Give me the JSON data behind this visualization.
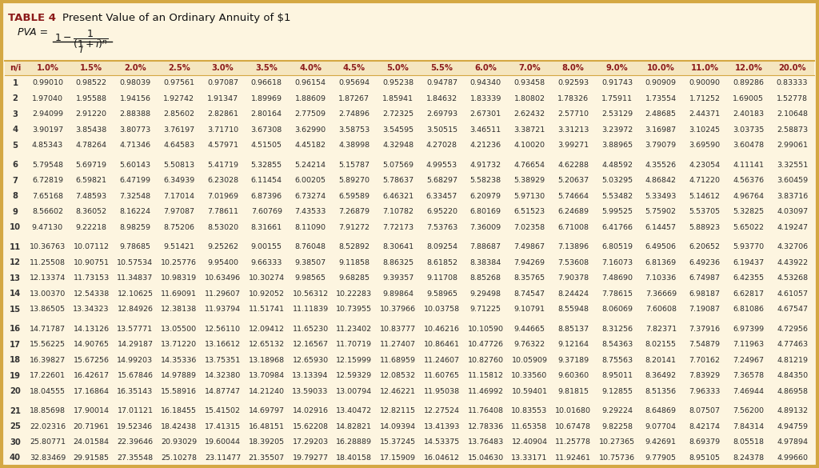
{
  "title_bold": "TABLE 4",
  "title_rest": "  Present Value of an Ordinary Annuity of $1",
  "bg_color": "#fdf5e0",
  "border_color": "#d4a843",
  "header_text_color": "#8b1a1a",
  "data_text_color": "#2a2a2a",
  "row_n_color": "#333333",
  "header_row_bg": "#f5e6c0",
  "data_row_bg": "#fdf5e0",
  "columns": [
    "n/i",
    "1.0%",
    "1.5%",
    "2.0%",
    "2.5%",
    "3.0%",
    "3.5%",
    "4.0%",
    "4.5%",
    "5.0%",
    "5.5%",
    "6.0%",
    "7.0%",
    "8.0%",
    "9.0%",
    "10.0%",
    "11.0%",
    "12.0%",
    "20.0%"
  ],
  "rows": [
    [
      1,
      0.9901,
      0.98522,
      0.98039,
      0.97561,
      0.97087,
      0.96618,
      0.96154,
      0.95694,
      0.95238,
      0.94787,
      0.9434,
      0.93458,
      0.92593,
      0.91743,
      0.90909,
      0.9009,
      0.89286,
      0.83333
    ],
    [
      2,
      1.9704,
      1.95588,
      1.94156,
      1.92742,
      1.91347,
      1.89969,
      1.88609,
      1.87267,
      1.85941,
      1.84632,
      1.83339,
      1.80802,
      1.78326,
      1.75911,
      1.73554,
      1.71252,
      1.69005,
      1.52778
    ],
    [
      3,
      2.94099,
      2.9122,
      2.88388,
      2.85602,
      2.82861,
      2.80164,
      2.77509,
      2.74896,
      2.72325,
      2.69793,
      2.67301,
      2.62432,
      2.5771,
      2.53129,
      2.48685,
      2.44371,
      2.40183,
      2.10648
    ],
    [
      4,
      3.90197,
      3.85438,
      3.80773,
      3.76197,
      3.7171,
      3.67308,
      3.6299,
      3.58753,
      3.54595,
      3.50515,
      3.46511,
      3.38721,
      3.31213,
      3.23972,
      3.16987,
      3.10245,
      3.03735,
      2.58873
    ],
    [
      5,
      4.85343,
      4.78264,
      4.71346,
      4.64583,
      4.57971,
      4.51505,
      4.45182,
      4.38998,
      4.32948,
      4.27028,
      4.21236,
      4.1002,
      3.99271,
      3.88965,
      3.79079,
      3.6959,
      3.60478,
      2.99061
    ],
    [
      6,
      5.79548,
      5.69719,
      5.60143,
      5.50813,
      5.41719,
      5.32855,
      5.24214,
      5.15787,
      5.07569,
      4.99553,
      4.91732,
      4.76654,
      4.62288,
      4.48592,
      4.35526,
      4.23054,
      4.11141,
      3.32551
    ],
    [
      7,
      6.72819,
      6.59821,
      6.47199,
      6.34939,
      6.23028,
      6.11454,
      6.00205,
      5.8927,
      5.78637,
      5.68297,
      5.58238,
      5.38929,
      5.20637,
      5.03295,
      4.86842,
      4.7122,
      4.56376,
      3.60459
    ],
    [
      8,
      7.65168,
      7.48593,
      7.32548,
      7.17014,
      7.01969,
      6.87396,
      6.73274,
      6.59589,
      6.46321,
      6.33457,
      6.20979,
      5.9713,
      5.74664,
      5.53482,
      5.33493,
      5.14612,
      4.96764,
      3.83716
    ],
    [
      9,
      8.56602,
      8.36052,
      8.16224,
      7.97087,
      7.78611,
      7.60769,
      7.43533,
      7.26879,
      7.10782,
      6.9522,
      6.80169,
      6.51523,
      6.24689,
      5.99525,
      5.75902,
      5.53705,
      5.32825,
      4.03097
    ],
    [
      10,
      9.4713,
      9.22218,
      8.98259,
      8.75206,
      8.5302,
      8.31661,
      8.1109,
      7.91272,
      7.72173,
      7.53763,
      7.36009,
      7.02358,
      6.71008,
      6.41766,
      6.14457,
      5.88923,
      5.65022,
      4.19247
    ],
    [
      11,
      10.36763,
      10.07112,
      9.78685,
      9.51421,
      9.25262,
      9.00155,
      8.76048,
      8.52892,
      8.30641,
      8.09254,
      7.88687,
      7.49867,
      7.13896,
      6.80519,
      6.49506,
      6.20652,
      5.9377,
      4.32706
    ],
    [
      12,
      11.25508,
      10.90751,
      10.57534,
      10.25776,
      9.954,
      9.66333,
      9.38507,
      9.11858,
      8.86325,
      8.61852,
      8.38384,
      7.94269,
      7.53608,
      7.16073,
      6.81369,
      6.49236,
      6.19437,
      4.43922
    ],
    [
      13,
      12.13374,
      11.73153,
      11.34837,
      10.98319,
      10.63496,
      10.30274,
      9.98565,
      9.68285,
      9.39357,
      9.11708,
      8.85268,
      8.35765,
      7.90378,
      7.4869,
      7.10336,
      6.74987,
      6.42355,
      4.53268
    ],
    [
      14,
      13.0037,
      12.54338,
      12.10625,
      11.69091,
      11.29607,
      10.92052,
      10.56312,
      10.22283,
      9.89864,
      9.58965,
      9.29498,
      8.74547,
      8.24424,
      7.78615,
      7.36669,
      6.98187,
      6.62817,
      4.61057
    ],
    [
      15,
      13.86505,
      13.34323,
      12.84926,
      12.38138,
      11.93794,
      11.51741,
      11.11839,
      10.73955,
      10.37966,
      10.03758,
      9.71225,
      9.10791,
      8.55948,
      8.06069,
      7.60608,
      7.19087,
      6.81086,
      4.67547
    ],
    [
      16,
      14.71787,
      14.13126,
      13.57771,
      13.055,
      12.5611,
      12.09412,
      11.6523,
      11.23402,
      10.83777,
      10.46216,
      10.1059,
      9.44665,
      8.85137,
      8.31256,
      7.82371,
      7.37916,
      6.97399,
      4.72956
    ],
    [
      17,
      15.56225,
      14.90765,
      14.29187,
      13.7122,
      13.16612,
      12.65132,
      12.16567,
      11.70719,
      11.27407,
      10.86461,
      10.47726,
      9.76322,
      9.12164,
      8.54363,
      8.02155,
      7.54879,
      7.11963,
      4.77463
    ],
    [
      18,
      16.39827,
      15.67256,
      14.99203,
      14.35336,
      13.75351,
      13.18968,
      12.6593,
      12.15999,
      11.68959,
      11.24607,
      10.8276,
      10.05909,
      9.37189,
      8.75563,
      8.20141,
      7.70162,
      7.24967,
      4.81219
    ],
    [
      19,
      17.22601,
      16.42617,
      15.67846,
      14.97889,
      14.3238,
      13.70984,
      13.13394,
      12.59329,
      12.08532,
      11.60765,
      11.15812,
      10.3356,
      9.6036,
      8.95011,
      8.36492,
      7.83929,
      7.36578,
      4.8435
    ],
    [
      20,
      18.04555,
      17.16864,
      16.35143,
      15.58916,
      14.87747,
      14.2124,
      13.59033,
      13.00794,
      12.46221,
      11.95038,
      11.46992,
      10.59401,
      9.81815,
      9.12855,
      8.51356,
      7.96333,
      7.46944,
      4.86958
    ],
    [
      21,
      18.85698,
      17.90014,
      17.01121,
      16.18455,
      15.41502,
      14.69797,
      14.02916,
      13.40472,
      12.82115,
      12.27524,
      11.76408,
      10.83553,
      10.0168,
      9.29224,
      8.64869,
      8.07507,
      7.562,
      4.89132
    ],
    [
      25,
      22.02316,
      20.71961,
      19.52346,
      18.42438,
      17.41315,
      16.48151,
      15.62208,
      14.82821,
      14.09394,
      13.41393,
      12.78336,
      11.65358,
      10.67478,
      9.82258,
      9.07704,
      8.42174,
      7.84314,
      4.94759
    ],
    [
      30,
      25.80771,
      24.01584,
      22.39646,
      20.93029,
      19.60044,
      18.39205,
      17.29203,
      16.28889,
      15.37245,
      14.53375,
      13.76483,
      12.40904,
      11.25778,
      10.27365,
      9.42691,
      8.69379,
      8.05518,
      4.97894
    ],
    [
      40,
      32.83469,
      29.91585,
      27.35548,
      25.10278,
      23.11477,
      21.35507,
      19.79277,
      18.40158,
      17.15909,
      16.04612,
      15.0463,
      13.33171,
      11.92461,
      10.75736,
      9.77905,
      8.95105,
      8.24378,
      4.9966
    ]
  ],
  "group_sizes": [
    5,
    5,
    5,
    5,
    4
  ]
}
